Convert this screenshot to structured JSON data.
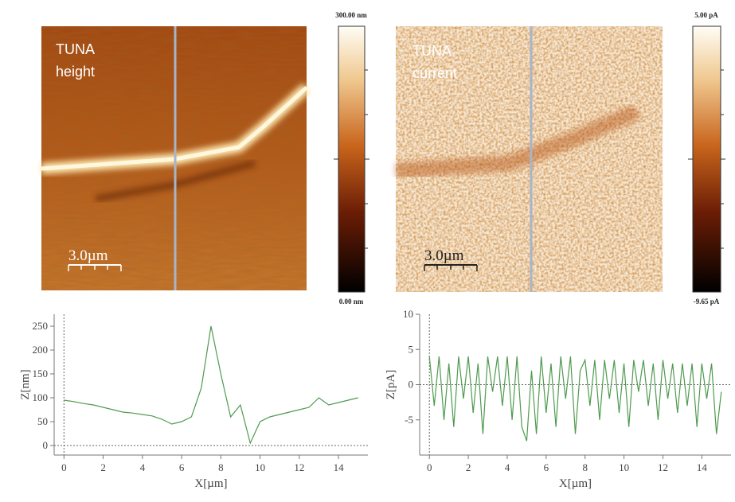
{
  "images": [
    {
      "label_line1": "TUNA",
      "label_line2": "height",
      "scale_bar": "3.0µm",
      "colorbar_max": "300.00 nm",
      "colorbar_min": "0.00 nm"
    },
    {
      "label_line1": "TUNA",
      "label_line2": "current",
      "scale_bar": "3.0µm",
      "colorbar_max": "5.00 pA",
      "colorbar_min": "-9.65 pA"
    }
  ],
  "chart_data": [
    {
      "type": "line",
      "xlabel": "X[µm]",
      "ylabel": "Z[nm]",
      "color": "#4f9a4f",
      "reference_lines": true,
      "x": [
        0,
        0.5,
        1,
        1.5,
        2,
        2.5,
        3,
        3.5,
        4,
        4.5,
        5,
        5.5,
        6,
        6.5,
        7,
        7.5,
        8,
        8.5,
        9,
        9.5,
        10,
        10.5,
        11,
        11.5,
        12,
        12.5,
        13,
        13.5,
        14,
        14.5,
        15
      ],
      "values": [
        95,
        92,
        88,
        85,
        80,
        75,
        70,
        68,
        65,
        62,
        55,
        45,
        50,
        60,
        120,
        250,
        150,
        60,
        85,
        5,
        50,
        60,
        65,
        70,
        75,
        80,
        100,
        85,
        90,
        95,
        100
      ],
      "xlim": [
        -0.5,
        15.5
      ],
      "ylim": [
        -20,
        275
      ],
      "xticks": [
        0,
        2,
        4,
        6,
        8,
        10,
        12,
        14
      ],
      "yticks": [
        0,
        50,
        100,
        150,
        200,
        250
      ]
    },
    {
      "type": "line",
      "xlabel": "X[µm]",
      "ylabel": "Z[pA]",
      "color": "#4f9a4f",
      "reference_lines": true,
      "x": [
        0,
        0.25,
        0.5,
        0.75,
        1,
        1.25,
        1.5,
        1.75,
        2,
        2.25,
        2.5,
        2.75,
        3,
        3.25,
        3.5,
        3.75,
        4,
        4.25,
        4.5,
        4.75,
        5,
        5.25,
        5.5,
        5.75,
        6,
        6.25,
        6.5,
        6.75,
        7,
        7.25,
        7.5,
        7.75,
        8,
        8.25,
        8.5,
        8.75,
        9,
        9.25,
        9.5,
        9.75,
        10,
        10.25,
        10.5,
        10.75,
        11,
        11.25,
        11.5,
        11.75,
        12,
        12.25,
        12.5,
        12.75,
        13,
        13.25,
        13.5,
        13.75,
        14,
        14.25,
        14.5,
        14.75,
        15
      ],
      "values": [
        4,
        -3,
        4,
        -5,
        3,
        -6,
        4,
        -2,
        4,
        -4,
        3,
        -7,
        4,
        -1,
        4,
        -3,
        4,
        -5,
        4,
        -6,
        -8,
        2,
        -7,
        4,
        -4,
        3,
        -6,
        4,
        -2,
        4,
        -7,
        2,
        3.5,
        -3,
        3.5,
        -5,
        3.5,
        -2,
        3.5,
        -4,
        3,
        -6,
        3.5,
        -1,
        3.5,
        -3,
        3,
        -5,
        3.5,
        -2,
        3,
        -4,
        3,
        -3,
        3,
        -6,
        3,
        -2,
        3,
        -7,
        -1
      ],
      "xlim": [
        -0.5,
        15.5
      ],
      "ylim": [
        -10,
        10
      ],
      "xticks": [
        0,
        2,
        4,
        6,
        8,
        10,
        12,
        14
      ],
      "yticks": [
        -5,
        0,
        5,
        10
      ]
    }
  ]
}
